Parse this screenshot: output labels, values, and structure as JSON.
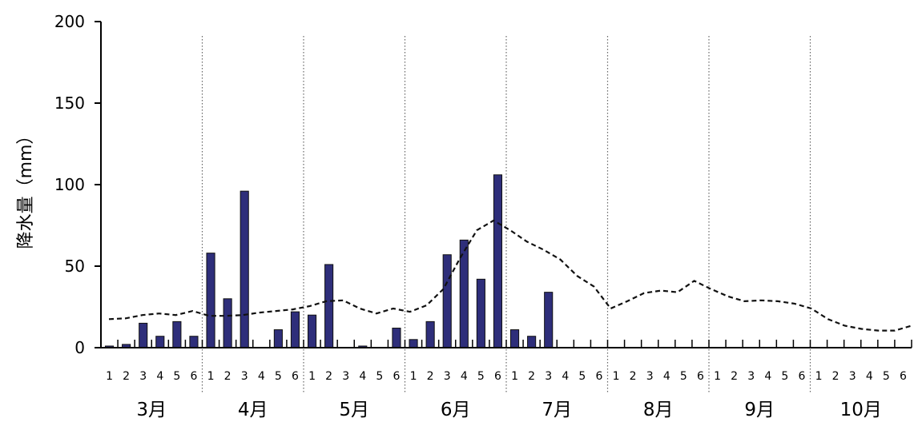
{
  "chart_data": {
    "type": "bar",
    "title": "",
    "xlabel": "",
    "ylabel": "降水量（mm）",
    "ylim": [
      0,
      200
    ],
    "yticks": [
      "0",
      "50",
      "100",
      "150",
      "200"
    ],
    "months": [
      "3月",
      "4月",
      "5月",
      "6月",
      "7月",
      "8月",
      "9月",
      "10月"
    ],
    "subperiods": [
      "1",
      "2",
      "3",
      "4",
      "5",
      "6"
    ],
    "bar_color": "#2e2e7a",
    "series": [
      {
        "type": "bar",
        "values": [
          1,
          2,
          15,
          7,
          16,
          7,
          58,
          30,
          96,
          0,
          11,
          22,
          20,
          51,
          0,
          1,
          0,
          12,
          5,
          16,
          57,
          66,
          42,
          106,
          11,
          7,
          34,
          0,
          0,
          0,
          0,
          0,
          0,
          0,
          0,
          0,
          0,
          0,
          0,
          0,
          0,
          0,
          0,
          0,
          0,
          0,
          0,
          0
        ]
      },
      {
        "type": "line",
        "style": "dashed",
        "values": [
          17.5,
          18,
          20,
          21,
          20,
          22.5,
          19.5,
          19.5,
          20,
          21.5,
          22.5,
          23.5,
          25.5,
          28.5,
          29,
          24,
          21,
          24,
          22,
          26,
          36,
          55,
          72,
          78,
          72,
          65,
          60,
          54,
          44,
          37.5,
          24,
          28.5,
          33.5,
          35,
          34,
          41,
          36,
          31.5,
          28.5,
          29,
          28.5,
          27,
          24,
          17.5,
          13.5,
          11.5,
          10.5,
          10.5,
          13.5
        ]
      }
    ]
  }
}
